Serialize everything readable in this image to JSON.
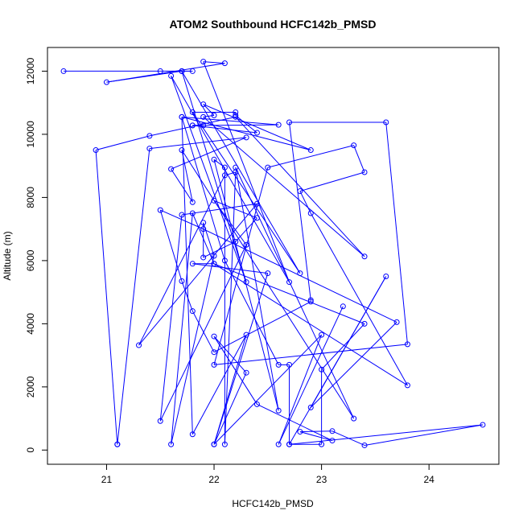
{
  "chart_data": {
    "type": "line",
    "title": "ATOM2 Southbound HCFC142b_PMSD",
    "xlabel": "HCFC142b_PMSD",
    "ylabel": "Altitude (m)",
    "xlim": [
      20.45,
      24.65
    ],
    "ylim": [
      -450,
      12750
    ],
    "x_ticks": [
      21,
      22,
      23,
      24
    ],
    "y_ticks": [
      0,
      2000,
      4000,
      6000,
      8000,
      10000,
      12000
    ],
    "grid": false,
    "markers": "open-circle",
    "series_color": "#0000ff",
    "series": [
      {
        "points": [
          [
            20.6,
            12000
          ],
          [
            21.5,
            12000
          ],
          [
            21.7,
            12000
          ],
          [
            21.8,
            12000
          ],
          [
            21.7,
            12000
          ],
          [
            21.0,
            11650
          ],
          [
            22.1,
            12250
          ],
          [
            21.9,
            12300
          ],
          [
            22.7,
            5320
          ],
          [
            21.6,
            11850
          ],
          [
            22.3,
            5320
          ],
          [
            21.7,
            12000
          ],
          [
            22.8,
            5600
          ],
          [
            21.8,
            10700
          ],
          [
            22.2,
            10700
          ],
          [
            22.2,
            10600
          ],
          [
            22.4,
            10050
          ],
          [
            21.8,
            10280
          ],
          [
            21.9,
            10280
          ],
          [
            21.8,
            10280
          ],
          [
            22.6,
            10300
          ],
          [
            21.7,
            10550
          ],
          [
            22.9,
            9500
          ],
          [
            21.9,
            10950
          ],
          [
            22.0,
            10600
          ],
          [
            21.9,
            10550
          ],
          [
            23.4,
            6130
          ],
          [
            22.2,
            10550
          ],
          [
            21.4,
            9950
          ],
          [
            20.9,
            9500
          ],
          [
            21.1,
            180
          ],
          [
            21.1,
            180
          ],
          [
            21.4,
            9550
          ],
          [
            22.3,
            9900
          ],
          [
            21.6,
            8900
          ],
          [
            21.8,
            7850
          ],
          [
            21.7,
            9500
          ],
          [
            23.3,
            1000
          ],
          [
            22.2,
            8950
          ],
          [
            22.6,
            1250
          ],
          [
            22.0,
            9200
          ],
          [
            22.1,
            8950
          ],
          [
            22.1,
            180
          ],
          [
            22.2,
            8800
          ],
          [
            22.1,
            8700
          ],
          [
            21.3,
            3320
          ],
          [
            22.4,
            7800
          ],
          [
            21.7,
            7450
          ],
          [
            21.5,
            920
          ],
          [
            22.3,
            6500
          ],
          [
            22.0,
            7900
          ],
          [
            22.4,
            7350
          ],
          [
            22.2,
            6600
          ],
          [
            21.9,
            6100
          ],
          [
            21.9,
            7200
          ],
          [
            22.0,
            6150
          ],
          [
            21.6,
            180
          ],
          [
            21.8,
            7500
          ],
          [
            22.0,
            5900
          ],
          [
            21.8,
            5900
          ],
          [
            22.5,
            5600
          ],
          [
            22.0,
            180
          ],
          [
            22.3,
            3650
          ],
          [
            21.8,
            500
          ],
          [
            21.7,
            10550
          ],
          [
            22.1,
            6000
          ],
          [
            22.6,
            2700
          ],
          [
            22.7,
            2700
          ],
          [
            22.7,
            180
          ],
          [
            23.6,
            5500
          ],
          [
            22.9,
            1350
          ],
          [
            23.7,
            4050
          ],
          [
            21.9,
            7000
          ],
          [
            21.5,
            7600
          ],
          [
            21.7,
            5350
          ],
          [
            21.8,
            4400
          ],
          [
            22.0,
            3100
          ],
          [
            22.9,
            4700
          ],
          [
            22.9,
            4750
          ],
          [
            22.7,
            10380
          ],
          [
            23.6,
            10380
          ],
          [
            23.8,
            3350
          ],
          [
            22.0,
            2700
          ],
          [
            22.5,
            8950
          ],
          [
            23.3,
            9650
          ],
          [
            23.4,
            8800
          ],
          [
            22.8,
            8200
          ],
          [
            22.9,
            7500
          ],
          [
            23.8,
            2050
          ],
          [
            22.0,
            5900
          ],
          [
            23.4,
            4000
          ],
          [
            23.0,
            2550
          ],
          [
            23.0,
            180
          ],
          [
            22.7,
            180
          ],
          [
            24.5,
            800
          ],
          [
            23.4,
            150
          ],
          [
            23.1,
            600
          ],
          [
            22.8,
            580
          ],
          [
            23.1,
            300
          ],
          [
            22.4,
            1450
          ],
          [
            22.0,
            3600
          ],
          [
            22.3,
            2450
          ],
          [
            22.0,
            180
          ],
          [
            23.0,
            3650
          ],
          [
            22.6,
            180
          ],
          [
            23.2,
            4550
          ]
        ]
      }
    ]
  }
}
